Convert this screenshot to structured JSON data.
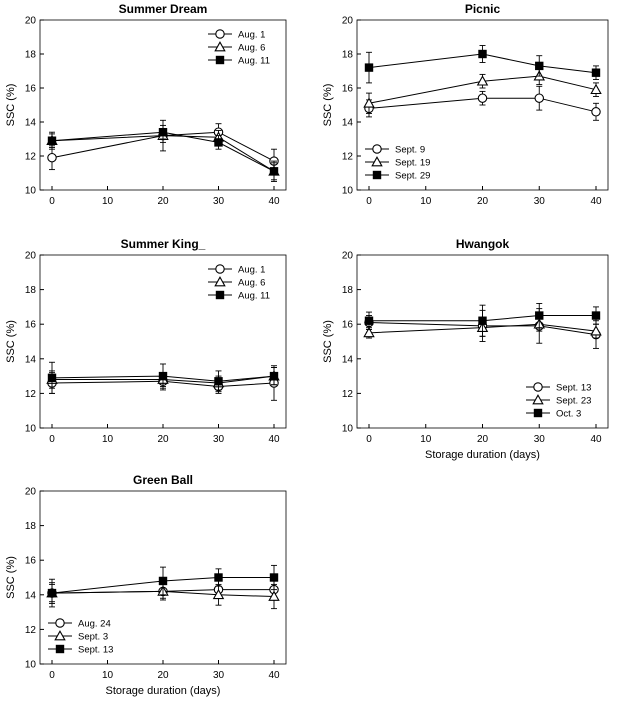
{
  "chart_data": [
    {
      "type": "line",
      "title": "Summer Dream",
      "ylabel": "SSC (%)",
      "xlabel": "",
      "x": [
        0,
        20,
        30,
        40
      ],
      "xticks": [
        0,
        10,
        20,
        30,
        40
      ],
      "yticks": [
        10,
        12,
        14,
        16,
        18,
        20
      ],
      "xlim": [
        0,
        40
      ],
      "ylim": [
        10,
        20
      ],
      "legend_position": "top-right",
      "series": [
        {
          "name": "Aug. 1",
          "marker": "circle",
          "values": [
            11.9,
            13.2,
            13.4,
            11.7
          ],
          "errors": [
            0.7,
            0.9,
            0.5,
            0.7
          ]
        },
        {
          "name": "Aug. 6",
          "marker": "triangle",
          "values": [
            12.9,
            13.2,
            13.1,
            11.1
          ],
          "errors": [
            0.4,
            0.4,
            0.4,
            0.5
          ]
        },
        {
          "name": "Aug. 11",
          "marker": "square",
          "values": [
            12.9,
            13.4,
            12.8,
            11.1
          ],
          "errors": [
            0.5,
            0.4,
            0.4,
            0.6
          ]
        }
      ]
    },
    {
      "type": "line",
      "title": "Picnic",
      "ylabel": "SSC (%)",
      "xlabel": "",
      "x": [
        0,
        20,
        30,
        40
      ],
      "xticks": [
        0,
        10,
        20,
        30,
        40
      ],
      "yticks": [
        10,
        12,
        14,
        16,
        18,
        20
      ],
      "xlim": [
        0,
        40
      ],
      "ylim": [
        10,
        20
      ],
      "legend_position": "bottom-left",
      "series": [
        {
          "name": "Sept. 9",
          "marker": "circle",
          "values": [
            14.8,
            15.4,
            15.4,
            14.6
          ],
          "errors": [
            0.5,
            0.4,
            0.7,
            0.5
          ]
        },
        {
          "name": "Sept. 19",
          "marker": "triangle",
          "values": [
            15.1,
            16.4,
            16.7,
            15.9
          ],
          "errors": [
            0.6,
            0.4,
            0.5,
            0.4
          ]
        },
        {
          "name": "Sept. 29",
          "marker": "square",
          "values": [
            17.2,
            18.0,
            17.3,
            16.9
          ],
          "errors": [
            0.9,
            0.5,
            0.6,
            0.4
          ]
        }
      ]
    },
    {
      "type": "line",
      "title": "Summer King_",
      "ylabel": "SSC (%)",
      "xlabel": "",
      "x": [
        0,
        20,
        30,
        40
      ],
      "xticks": [
        0,
        10,
        20,
        30,
        40
      ],
      "yticks": [
        10,
        12,
        14,
        16,
        18,
        20
      ],
      "xlim": [
        0,
        40
      ],
      "ylim": [
        10,
        20
      ],
      "legend_position": "top-right",
      "series": [
        {
          "name": "Aug. 1",
          "marker": "circle",
          "values": [
            12.6,
            12.7,
            12.4,
            12.6
          ],
          "errors": [
            0.6,
            0.5,
            0.4,
            1.0
          ]
        },
        {
          "name": "Aug. 6",
          "marker": "triangle",
          "values": [
            12.8,
            12.8,
            12.6,
            13.0
          ],
          "errors": [
            0.5,
            0.4,
            0.4,
            0.5
          ]
        },
        {
          "name": "Aug. 11",
          "marker": "square",
          "values": [
            12.9,
            13.0,
            12.7,
            13.0
          ],
          "errors": [
            0.9,
            0.7,
            0.6,
            0.5
          ]
        }
      ]
    },
    {
      "type": "line",
      "title": "Hwangok",
      "ylabel": "SSC (%)",
      "xlabel": "Storage duration (days)",
      "x": [
        0,
        20,
        30,
        40
      ],
      "xticks": [
        0,
        10,
        20,
        30,
        40
      ],
      "yticks": [
        10,
        12,
        14,
        16,
        18,
        20
      ],
      "xlim": [
        0,
        40
      ],
      "ylim": [
        10,
        20
      ],
      "legend_position": "bottom-right",
      "series": [
        {
          "name": "Sept. 13",
          "marker": "circle",
          "values": [
            16.1,
            15.9,
            15.9,
            15.4
          ],
          "errors": [
            0.4,
            0.9,
            1.0,
            0.8
          ]
        },
        {
          "name": "Sept. 23",
          "marker": "triangle",
          "values": [
            15.5,
            15.8,
            16.0,
            15.6
          ],
          "errors": [
            0.3,
            0.5,
            0.4,
            0.4
          ]
        },
        {
          "name": "Oct. 3",
          "marker": "square",
          "values": [
            16.2,
            16.2,
            16.5,
            16.5
          ],
          "errors": [
            0.5,
            0.9,
            0.7,
            0.5
          ]
        }
      ]
    },
    {
      "type": "line",
      "title": "Green Ball",
      "ylabel": "SSC (%)",
      "xlabel": "Storage duration (days)",
      "x": [
        0,
        20,
        30,
        40
      ],
      "xticks": [
        0,
        10,
        20,
        30,
        40
      ],
      "yticks": [
        10,
        12,
        14,
        16,
        18,
        20
      ],
      "xlim": [
        0,
        40
      ],
      "ylim": [
        10,
        20
      ],
      "legend_position": "bottom-left",
      "series": [
        {
          "name": "Aug. 24",
          "marker": "circle",
          "values": [
            14.1,
            14.2,
            14.3,
            14.3
          ],
          "errors": [
            0.6,
            0.5,
            0.5,
            0.5
          ]
        },
        {
          "name": "Sept. 3",
          "marker": "triangle",
          "values": [
            14.1,
            14.2,
            14.0,
            13.9
          ],
          "errors": [
            0.5,
            0.4,
            0.6,
            0.7
          ]
        },
        {
          "name": "Sept. 13",
          "marker": "square",
          "values": [
            14.1,
            14.8,
            15.0,
            15.0
          ],
          "errors": [
            0.8,
            0.8,
            0.5,
            0.7
          ]
        }
      ]
    }
  ]
}
